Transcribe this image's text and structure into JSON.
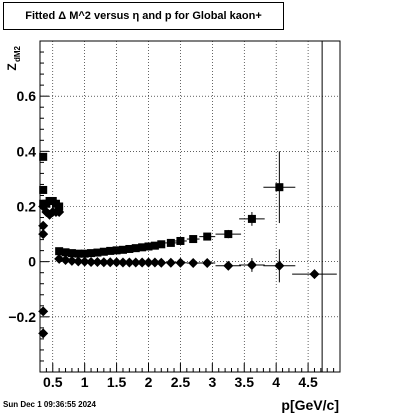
{
  "title": "Fitted Δ M^2 versus η and p for Global kaon+",
  "timestamp": "Sun Dec  1 09:36:55 2024",
  "chart_data": {
    "type": "scatter",
    "xlabel": "p[GeV/c]",
    "ylabel": "Z_dM2",
    "ylabel_main": "Z",
    "ylabel_sub": "dM2",
    "xlim": [
      0.3,
      5.0
    ],
    "ylim": [
      -0.4,
      0.8
    ],
    "xticks": [
      0.5,
      1,
      1.5,
      2,
      2.5,
      3,
      3.5,
      4,
      4.5
    ],
    "xtick_labels": [
      "0.5",
      "1",
      "1.5",
      "2",
      "2.5",
      "3",
      "3.5",
      "4",
      "4.5"
    ],
    "yticks": [
      -0.2,
      0,
      0.2,
      0.4,
      0.6
    ],
    "ytick_labels": [
      "−0.2",
      "0",
      "0.2",
      "0.4",
      "0.6"
    ],
    "grid": true,
    "vertical_line_x": 4.72,
    "series": [
      {
        "marker": "square",
        "points": [
          {
            "x": 0.35,
            "y": 0.38,
            "xerr": 0.0,
            "yerr": 0.01
          },
          {
            "x": 0.35,
            "y": 0.26,
            "xerr": 0.0,
            "yerr": 0.01
          },
          {
            "x": 0.35,
            "y": 0.21,
            "xerr": 0.0,
            "yerr": 0.01
          },
          {
            "x": 0.4,
            "y": 0.21,
            "xerr": 0.0,
            "yerr": 0.01
          },
          {
            "x": 0.45,
            "y": 0.22,
            "xerr": 0.0,
            "yerr": 0.01
          },
          {
            "x": 0.5,
            "y": 0.22,
            "xerr": 0.0,
            "yerr": 0.01
          },
          {
            "x": 0.55,
            "y": 0.21,
            "xerr": 0.0,
            "yerr": 0.01
          },
          {
            "x": 0.6,
            "y": 0.2,
            "xerr": 0.0,
            "yerr": 0.01
          },
          {
            "x": 0.6,
            "y": 0.038,
            "xerr": 0.05,
            "yerr": 0.005
          },
          {
            "x": 0.7,
            "y": 0.034,
            "xerr": 0.05,
            "yerr": 0.005
          },
          {
            "x": 0.8,
            "y": 0.031,
            "xerr": 0.05,
            "yerr": 0.005
          },
          {
            "x": 0.9,
            "y": 0.029,
            "xerr": 0.05,
            "yerr": 0.005
          },
          {
            "x": 1.0,
            "y": 0.029,
            "xerr": 0.05,
            "yerr": 0.005
          },
          {
            "x": 1.1,
            "y": 0.031,
            "xerr": 0.05,
            "yerr": 0.005
          },
          {
            "x": 1.2,
            "y": 0.033,
            "xerr": 0.05,
            "yerr": 0.005
          },
          {
            "x": 1.3,
            "y": 0.036,
            "xerr": 0.05,
            "yerr": 0.005
          },
          {
            "x": 1.4,
            "y": 0.039,
            "xerr": 0.05,
            "yerr": 0.005
          },
          {
            "x": 1.5,
            "y": 0.041,
            "xerr": 0.05,
            "yerr": 0.005
          },
          {
            "x": 1.6,
            "y": 0.043,
            "xerr": 0.05,
            "yerr": 0.005
          },
          {
            "x": 1.7,
            "y": 0.046,
            "xerr": 0.05,
            "yerr": 0.005
          },
          {
            "x": 1.8,
            "y": 0.049,
            "xerr": 0.05,
            "yerr": 0.005
          },
          {
            "x": 1.9,
            "y": 0.052,
            "xerr": 0.05,
            "yerr": 0.005
          },
          {
            "x": 2.0,
            "y": 0.055,
            "xerr": 0.05,
            "yerr": 0.006
          },
          {
            "x": 2.1,
            "y": 0.058,
            "xerr": 0.05,
            "yerr": 0.006
          },
          {
            "x": 2.2,
            "y": 0.063,
            "xerr": 0.05,
            "yerr": 0.006
          },
          {
            "x": 2.35,
            "y": 0.068,
            "xerr": 0.1,
            "yerr": 0.007
          },
          {
            "x": 2.5,
            "y": 0.075,
            "xerr": 0.1,
            "yerr": 0.008
          },
          {
            "x": 2.7,
            "y": 0.082,
            "xerr": 0.1,
            "yerr": 0.009
          },
          {
            "x": 2.92,
            "y": 0.091,
            "xerr": 0.125,
            "yerr": 0.011
          },
          {
            "x": 3.25,
            "y": 0.1,
            "xerr": 0.2,
            "yerr": 0.015
          },
          {
            "x": 3.62,
            "y": 0.155,
            "xerr": 0.2,
            "yerr": 0.025
          },
          {
            "x": 4.05,
            "y": 0.27,
            "xerr": 0.25,
            "yerr": 0.13
          }
        ]
      },
      {
        "marker": "diamond",
        "points": [
          {
            "x": 0.35,
            "y": 0.2,
            "xerr": 0.0,
            "yerr": 0.01
          },
          {
            "x": 0.35,
            "y": 0.13,
            "xerr": 0.0,
            "yerr": 0.01
          },
          {
            "x": 0.35,
            "y": 0.1,
            "xerr": 0.0,
            "yerr": 0.01
          },
          {
            "x": 0.35,
            "y": -0.18,
            "xerr": 0.0,
            "yerr": 0.01
          },
          {
            "x": 0.35,
            "y": -0.26,
            "xerr": 0.0,
            "yerr": 0.01
          },
          {
            "x": 0.4,
            "y": 0.18,
            "xerr": 0.0,
            "yerr": 0.01
          },
          {
            "x": 0.45,
            "y": 0.17,
            "xerr": 0.0,
            "yerr": 0.01
          },
          {
            "x": 0.5,
            "y": 0.18,
            "xerr": 0.0,
            "yerr": 0.01
          },
          {
            "x": 0.55,
            "y": 0.18,
            "xerr": 0.0,
            "yerr": 0.01
          },
          {
            "x": 0.6,
            "y": 0.18,
            "xerr": 0.0,
            "yerr": 0.01
          },
          {
            "x": 0.6,
            "y": 0.01,
            "xerr": 0.05,
            "yerr": 0.005
          },
          {
            "x": 0.7,
            "y": 0.006,
            "xerr": 0.05,
            "yerr": 0.005
          },
          {
            "x": 0.8,
            "y": 0.003,
            "xerr": 0.05,
            "yerr": 0.005
          },
          {
            "x": 0.9,
            "y": 0.001,
            "xerr": 0.05,
            "yerr": 0.005
          },
          {
            "x": 1.0,
            "y": 0.0,
            "xerr": 0.05,
            "yerr": 0.005
          },
          {
            "x": 1.1,
            "y": -0.001,
            "xerr": 0.05,
            "yerr": 0.005
          },
          {
            "x": 1.2,
            "y": -0.001,
            "xerr": 0.05,
            "yerr": 0.005
          },
          {
            "x": 1.3,
            "y": -0.002,
            "xerr": 0.05,
            "yerr": 0.005
          },
          {
            "x": 1.4,
            "y": -0.002,
            "xerr": 0.05,
            "yerr": 0.005
          },
          {
            "x": 1.5,
            "y": -0.002,
            "xerr": 0.05,
            "yerr": 0.005
          },
          {
            "x": 1.6,
            "y": -0.003,
            "xerr": 0.05,
            "yerr": 0.005
          },
          {
            "x": 1.7,
            "y": -0.003,
            "xerr": 0.05,
            "yerr": 0.005
          },
          {
            "x": 1.8,
            "y": -0.003,
            "xerr": 0.05,
            "yerr": 0.005
          },
          {
            "x": 1.9,
            "y": -0.003,
            "xerr": 0.05,
            "yerr": 0.005
          },
          {
            "x": 2.0,
            "y": -0.003,
            "xerr": 0.05,
            "yerr": 0.006
          },
          {
            "x": 2.1,
            "y": -0.003,
            "xerr": 0.05,
            "yerr": 0.006
          },
          {
            "x": 2.2,
            "y": -0.004,
            "xerr": 0.05,
            "yerr": 0.006
          },
          {
            "x": 2.35,
            "y": -0.004,
            "xerr": 0.1,
            "yerr": 0.007
          },
          {
            "x": 2.5,
            "y": -0.004,
            "xerr": 0.1,
            "yerr": 0.008
          },
          {
            "x": 2.7,
            "y": -0.005,
            "xerr": 0.1,
            "yerr": 0.009
          },
          {
            "x": 2.92,
            "y": -0.005,
            "xerr": 0.125,
            "yerr": 0.011
          },
          {
            "x": 3.25,
            "y": -0.015,
            "xerr": 0.2,
            "yerr": 0.015
          },
          {
            "x": 3.62,
            "y": -0.012,
            "xerr": 0.2,
            "yerr": 0.025
          },
          {
            "x": 4.05,
            "y": -0.015,
            "xerr": 0.25,
            "yerr": 0.06
          },
          {
            "x": 4.6,
            "y": -0.045,
            "xerr": 0.35,
            "yerr": 0.0
          }
        ]
      }
    ]
  }
}
